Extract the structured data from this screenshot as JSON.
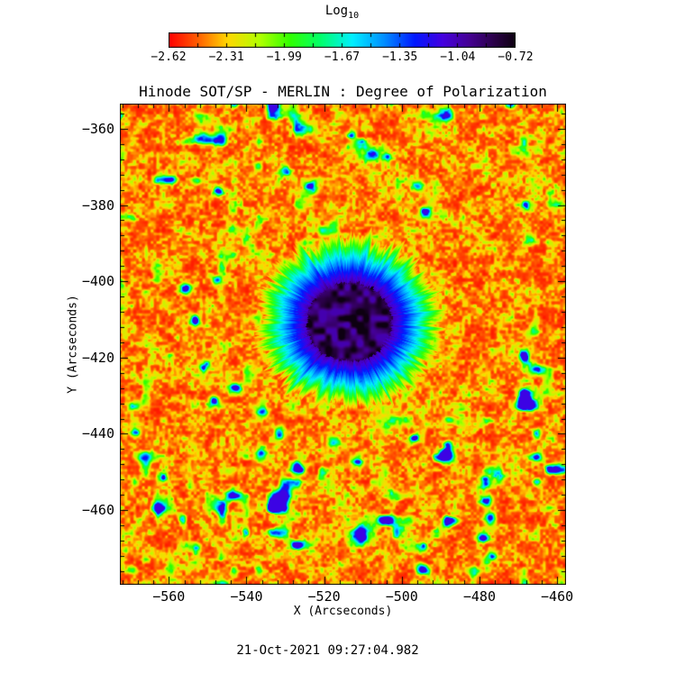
{
  "chart_data": {
    "type": "heatmap",
    "title": "Hinode SOT/SP - MERLIN : Degree of Polarization",
    "xlabel": "X (Arcseconds)",
    "ylabel": "Y (Arcseconds)",
    "timestamp": "21-Oct-2021 09:27:04.982",
    "x_ticks": [
      -560,
      -540,
      -520,
      -500,
      -480,
      -460
    ],
    "y_ticks": [
      -360,
      -380,
      -400,
      -420,
      -440,
      -460
    ],
    "x_range": [
      -572.6,
      -457.7
    ],
    "y_range": [
      -479.6,
      -353.4
    ],
    "minor_tick_step": 4,
    "grid": false,
    "colorbar": {
      "title_main": "Log",
      "title_sub": "10",
      "tick_labels": [
        -2.62,
        -2.31,
        -1.99,
        -1.67,
        -1.35,
        -1.04,
        -0.72
      ],
      "value_range": [
        -2.62,
        -0.72
      ],
      "segments": 12,
      "colormap_stops": [
        [
          0.0,
          "#ff0000"
        ],
        [
          0.08,
          "#ff5a00"
        ],
        [
          0.17,
          "#ffd800"
        ],
        [
          0.26,
          "#b4ff00"
        ],
        [
          0.35,
          "#30ff00"
        ],
        [
          0.44,
          "#00ff6e"
        ],
        [
          0.53,
          "#00efff"
        ],
        [
          0.62,
          "#0090ff"
        ],
        [
          0.71,
          "#0018ff"
        ],
        [
          0.79,
          "#4400e0"
        ],
        [
          0.87,
          "#440091"
        ],
        [
          0.94,
          "#2b0048"
        ],
        [
          1.0,
          "#0d0011"
        ]
      ]
    },
    "features": {
      "background_log10_pol": -2.5,
      "sunspot": {
        "center_arcsec": [
          -513.6,
          -410.6
        ],
        "umbra_radius_arcsec": 10.8,
        "penumbra_radius_arcsec": 22.0,
        "core_log10_pol": -0.72
      },
      "network_patches": [
        [
          -523.2,
          -374.9,
          1.6,
          0.7
        ],
        [
          -547.3,
          -376.1,
          1.2,
          0.55
        ],
        [
          -530.1,
          -371.1,
          1.3,
          0.5
        ],
        [
          -496.2,
          -374.9,
          1.4,
          0.6
        ],
        [
          -493.9,
          -381.8,
          1.5,
          0.65
        ],
        [
          -468.0,
          -379.9,
          1.2,
          0.55
        ],
        [
          -466.9,
          -388.7,
          1.2,
          0.5
        ],
        [
          -555.9,
          -401.9,
          1.4,
          0.6
        ],
        [
          -553.5,
          -410.1,
          1.3,
          0.7
        ],
        [
          -547.8,
          -399.5,
          1.2,
          0.5
        ],
        [
          -551.0,
          -422.0,
          1.3,
          0.58
        ],
        [
          -543.1,
          -427.9,
          1.5,
          0.6
        ],
        [
          -548.5,
          -431.4,
          1.4,
          0.72
        ],
        [
          -536.2,
          -433.8,
          1.5,
          0.6
        ],
        [
          -531.5,
          -439.6,
          1.4,
          0.62
        ],
        [
          -526.9,
          -449.1,
          1.6,
          0.78
        ],
        [
          -536.2,
          -445.5,
          1.4,
          0.66
        ],
        [
          -517.6,
          -442.0,
          1.4,
          0.55
        ],
        [
          -511.8,
          -446.8,
          1.3,
          0.6
        ],
        [
          -496.8,
          -440.9,
          1.1,
          0.55
        ],
        [
          -478.8,
          -452.7,
          1.5,
          0.65
        ],
        [
          -478.1,
          -457.4,
          1.4,
          0.7
        ],
        [
          -477.4,
          -462.1,
          1.4,
          0.68
        ],
        [
          -479.3,
          -466.9,
          1.3,
          0.62
        ],
        [
          -477.0,
          -471.6,
          1.2,
          0.58
        ],
        [
          -465.4,
          -439.7,
          1.1,
          0.5
        ],
        [
          -561.7,
          -451.5,
          1.2,
          0.55
        ],
        [
          -568.7,
          -439.7,
          1.2,
          0.5
        ],
        [
          -503.7,
          -367.5,
          1.1,
          0.5
        ],
        [
          -512.9,
          -361.7,
          1.1,
          0.5
        ]
      ]
    }
  }
}
